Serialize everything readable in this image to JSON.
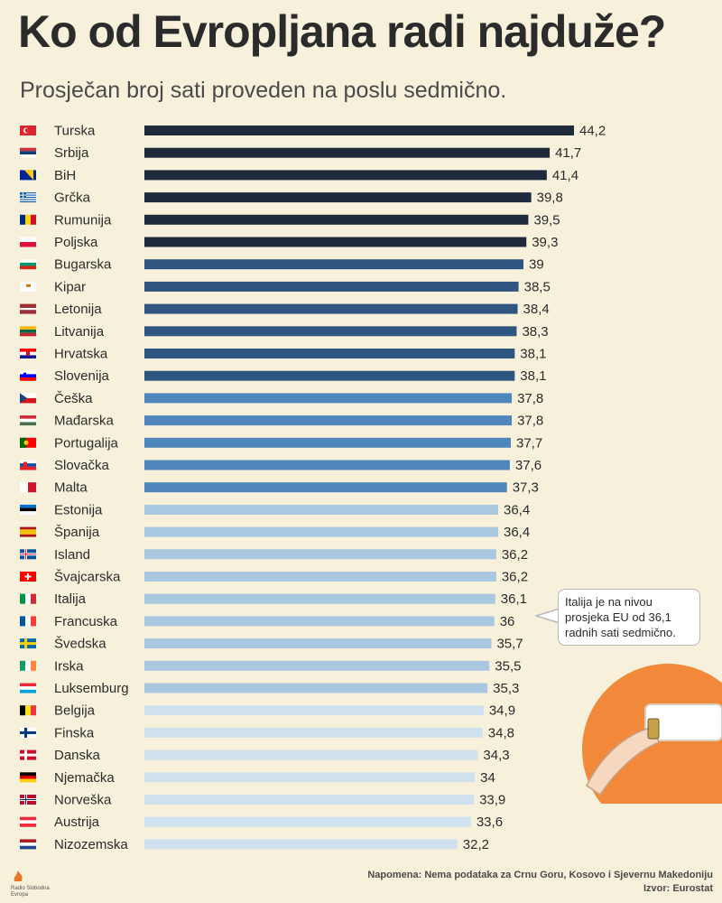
{
  "header": {
    "title": "Ko od Evropljana radi najduže?",
    "subtitle": "Prosječan broj sati proveden na poslu sedmično."
  },
  "callout": {
    "text": "Italija je na nivou prosjeka EU od 36,1 radnih sati sedmično."
  },
  "footer": {
    "note": "Napomena: Nema podataka za Crnu Goru, Kosovo i Sjevernu Makedoniju",
    "source": "Izvor: Eurostat",
    "logo_line1": "Radio Slobodna",
    "logo_line2": "Evropa"
  },
  "colors": {
    "background": "#f7f1dc",
    "tier1": "#1f2a3c",
    "tier2": "#2e5680",
    "tier3": "#4f86bb",
    "tier4": "#a9c8e0",
    "tier5": "#cfe0ee",
    "accent_orange": "#f2883a"
  },
  "chart_data": {
    "type": "bar",
    "orientation": "horizontal",
    "title": "Ko od Evropljana radi najduže?",
    "subtitle": "Prosječan broj sati proveden na poslu sedmično.",
    "categories": [
      "Turska",
      "Srbija",
      "BiH",
      "Grčka",
      "Rumunija",
      "Poljska",
      "Bugarska",
      "Kipar",
      "Letonija",
      "Litvanija",
      "Hrvatska",
      "Slovenija",
      "Češka",
      "Mađarska",
      "Portugalija",
      "Slovačka",
      "Malta",
      "Estonija",
      "Španija",
      "Island",
      "Švajcarska",
      "Italija",
      "Francuska",
      "Švedska",
      "Irska",
      "Luksemburg",
      "Belgija",
      "Finska",
      "Danska",
      "Njemačka",
      "Norveška",
      "Austrija",
      "Nizozemska"
    ],
    "values": [
      44.2,
      41.7,
      41.4,
      39.8,
      39.5,
      39.3,
      39,
      38.5,
      38.4,
      38.3,
      38.1,
      38.1,
      37.8,
      37.8,
      37.7,
      37.6,
      37.3,
      36.4,
      36.4,
      36.2,
      36.2,
      36.1,
      36,
      35.7,
      35.5,
      35.3,
      34.9,
      34.8,
      34.3,
      34,
      33.9,
      33.6,
      32.2
    ],
    "value_labels": [
      "44,2",
      "41,7",
      "41,4",
      "39,8",
      "39,5",
      "39,3",
      "39",
      "38,5",
      "38,4",
      "38,3",
      "38,1",
      "38,1",
      "37,8",
      "37,8",
      "37,7",
      "37,6",
      "37,3",
      "36,4",
      "36,4",
      "36,2",
      "36,2",
      "36,1",
      "36",
      "35,7",
      "35,5",
      "35,3",
      "34,9",
      "34,8",
      "34,3",
      "34",
      "33,9",
      "33,6",
      "32,2"
    ],
    "tiers": [
      1,
      1,
      1,
      1,
      1,
      1,
      2,
      2,
      2,
      2,
      2,
      2,
      3,
      3,
      3,
      3,
      3,
      4,
      4,
      4,
      4,
      4,
      4,
      4,
      4,
      4,
      5,
      5,
      5,
      5,
      5,
      5,
      5
    ],
    "flags": [
      "tr-flag-icon",
      "rs-flag-icon",
      "ba-flag-icon",
      "gr-flag-icon",
      "ro-flag-icon",
      "pl-flag-icon",
      "bg-flag-icon",
      "cy-flag-icon",
      "lv-flag-icon",
      "lt-flag-icon",
      "hr-flag-icon",
      "si-flag-icon",
      "cz-flag-icon",
      "hu-flag-icon",
      "pt-flag-icon",
      "sk-flag-icon",
      "mt-flag-icon",
      "ee-flag-icon",
      "es-flag-icon",
      "is-flag-icon",
      "ch-flag-icon",
      "it-flag-icon",
      "fr-flag-icon",
      "se-flag-icon",
      "ie-flag-icon",
      "lu-flag-icon",
      "be-flag-icon",
      "fi-flag-icon",
      "dk-flag-icon",
      "de-flag-icon",
      "no-flag-icon",
      "at-flag-icon",
      "nl-flag-icon"
    ],
    "grid": false,
    "xlim": [
      0,
      44.2
    ]
  }
}
